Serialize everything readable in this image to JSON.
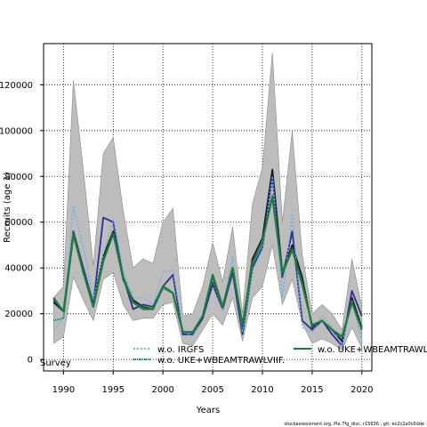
{
  "chart_data": {
    "type": "line",
    "xlabel": "Years",
    "ylabel": "Recruits (age 1)",
    "xlim": [
      1988,
      2021
    ],
    "ylim": [
      -5000,
      138000
    ],
    "xticks": [
      1990,
      1995,
      2000,
      2005,
      2010,
      2015,
      2020
    ],
    "yticks": [
      0,
      20000,
      40000,
      60000,
      80000,
      100000,
      120000
    ],
    "grid": true,
    "x": [
      1989,
      1990,
      1991,
      1992,
      1993,
      1994,
      1995,
      1996,
      1997,
      1998,
      1999,
      2000,
      2001,
      2002,
      2003,
      2004,
      2005,
      2006,
      2007,
      2008,
      2009,
      2010,
      2011,
      2012,
      2013,
      2014,
      2015,
      2016,
      2017,
      2018,
      2019,
      2020
    ],
    "band": {
      "lower": [
        7000,
        10000,
        36000,
        26000,
        17000,
        35000,
        38000,
        24000,
        17000,
        18000,
        18000,
        24000,
        25000,
        7000,
        6000,
        13000,
        20000,
        15000,
        27000,
        8000,
        27000,
        32000,
        50000,
        24000,
        35000,
        16000,
        7000,
        9000,
        7000,
        4000,
        14000,
        5000
      ],
      "upper": [
        27000,
        32000,
        122000,
        83000,
        41000,
        90000,
        97000,
        65000,
        40000,
        44000,
        42000,
        60000,
        66000,
        19000,
        20000,
        32000,
        51000,
        34000,
        58000,
        20000,
        68000,
        84000,
        134000,
        60000,
        100000,
        46000,
        20000,
        24000,
        20000,
        13000,
        44000,
        23000
      ]
    },
    "series": [
      {
        "name": "",
        "color": "#1a1a1a",
        "dash": "",
        "values": [
          25000,
          21000,
          55000,
          38000,
          25000,
          45000,
          56000,
          35000,
          26000,
          23000,
          22000,
          32000,
          29000,
          12000,
          12000,
          19000,
          35000,
          23000,
          40000,
          14000,
          44000,
          53000,
          83000,
          38000,
          50000,
          36000,
          14000,
          17000,
          13000,
          8000,
          27000,
          14000
        ]
      },
      {
        "name": "",
        "color": "#2d2d8a",
        "dash": "",
        "values": [
          26000,
          21000,
          56000,
          40000,
          24000,
          62000,
          60000,
          36000,
          22000,
          24000,
          23000,
          32000,
          37000,
          11000,
          11000,
          18000,
          33000,
          22000,
          38000,
          11000,
          40000,
          49000,
          80000,
          36000,
          56000,
          17000,
          13000,
          17000,
          11000,
          6000,
          30000,
          19000
        ]
      },
      {
        "name": "w.o. IRGFS",
        "color": "#66b3e0",
        "dash": "2,2",
        "values": [
          13000,
          18000,
          67000,
          49000,
          26000,
          46000,
          61000,
          39000,
          27000,
          27000,
          24000,
          38000,
          39000,
          13000,
          10000,
          20000,
          35000,
          22000,
          45000,
          12000,
          39000,
          48000,
          80000,
          27000,
          63000,
          14000,
          12000,
          19000,
          14000,
          6000,
          26000,
          8000
        ]
      },
      {
        "name": "w.o. UKE+WBEAMTRAWLVIIF.",
        "color": "#0d6f5a",
        "dash": "1,1",
        "values": [
          17000,
          18000,
          54000,
          38000,
          24000,
          43000,
          55000,
          35000,
          25000,
          23000,
          22000,
          31000,
          29000,
          12000,
          12000,
          19000,
          36000,
          23000,
          40000,
          14000,
          42000,
          51000,
          72000,
          37000,
          48000,
          34000,
          14000,
          17000,
          13000,
          9000,
          25000,
          14000
        ]
      },
      {
        "name": "w.o. UKE+WBEAMTRAWL",
        "color": "#1e7a3c",
        "dash": "",
        "values": [
          27000,
          21000,
          55000,
          38000,
          23000,
          43000,
          55000,
          36000,
          25000,
          22000,
          22000,
          32000,
          29000,
          12000,
          12000,
          19000,
          37000,
          23000,
          40000,
          15000,
          42000,
          52000,
          71000,
          38000,
          48000,
          33000,
          15000,
          17000,
          13000,
          10000,
          25000,
          13000
        ]
      }
    ],
    "legend": [
      {
        "label": "w.o. IRGFS",
        "series": 2
      },
      {
        "label": "w.o. UKE+WBEAMTRAWLVIIF.",
        "series": 3
      },
      {
        "label": "w.o. UKE+WBEAMTRAWL",
        "series": 4
      }
    ],
    "annotation": "Survey",
    "footer": "stockassessment.org, Ple.7fg_disc, r15636 , git: ec2c2a0c6dde"
  }
}
